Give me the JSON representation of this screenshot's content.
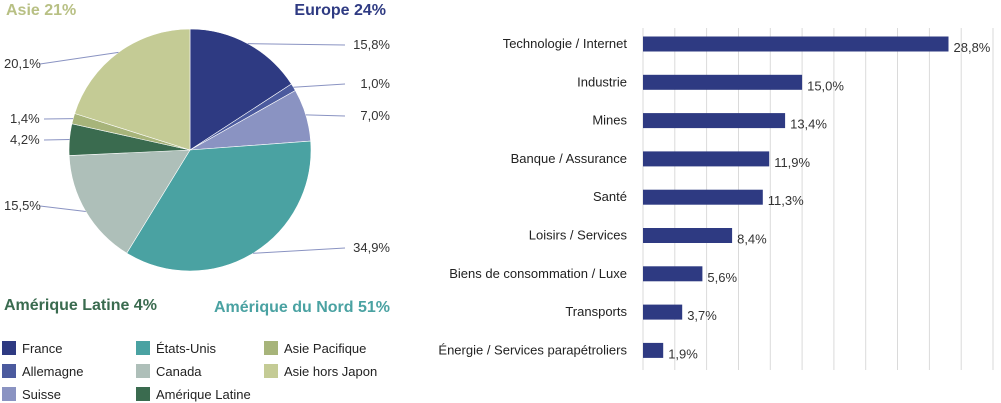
{
  "chart_data": [
    {
      "type": "pie",
      "slices": [
        {
          "name": "France",
          "value": 15.8,
          "label": "15,8%",
          "color": "#2e3a82"
        },
        {
          "name": "Allemagne",
          "value": 1.0,
          "label": "1,0%",
          "color": "#4b5a9e"
        },
        {
          "name": "Suisse",
          "value": 7.0,
          "label": "7,0%",
          "color": "#8a93c2"
        },
        {
          "name": "États-Unis",
          "value": 34.9,
          "label": "34,9%",
          "color": "#4aa2a2"
        },
        {
          "name": "Canada",
          "value": 15.5,
          "label": "15,5%",
          "color": "#aebfb9"
        },
        {
          "name": "Amérique Latine",
          "value": 4.2,
          "label": "4,2%",
          "color": "#3a6b4f"
        },
        {
          "name": "Asie Pacifique",
          "value": 1.4,
          "label": "1,4%",
          "color": "#a7b47a"
        },
        {
          "name": "Asie hors Japon",
          "value": 20.1,
          "label": "20,1%",
          "color": "#c4cb95"
        }
      ],
      "group_labels": [
        {
          "text": "Asie 21%",
          "color": "#b8c084"
        },
        {
          "text": "Europe 24%",
          "color": "#2e3a82"
        },
        {
          "text": "Amérique Latine 4%",
          "color": "#3a6b4f"
        },
        {
          "text": "Amérique du Nord 51%",
          "color": "#4aa2a2"
        }
      ],
      "legend": [
        {
          "label": "France",
          "color": "#2e3a82"
        },
        {
          "label": "Allemagne",
          "color": "#4b5a9e"
        },
        {
          "label": "Suisse",
          "color": "#8a93c2"
        },
        {
          "label": "États-Unis",
          "color": "#4aa2a2"
        },
        {
          "label": "Canada",
          "color": "#aebfb9"
        },
        {
          "label": "Amérique Latine",
          "color": "#3a6b4f"
        },
        {
          "label": "Asie Pacifique",
          "color": "#a7b47a"
        },
        {
          "label": "Asie hors Japon",
          "color": "#c4cb95"
        }
      ],
      "legend_placement": "bottom"
    },
    {
      "type": "bar",
      "orientation": "horizontal",
      "categories": [
        "Technologie / Internet",
        "Industrie",
        "Mines",
        "Banque / Assurance",
        "Santé",
        "Loisirs / Services",
        "Biens de consommation / Luxe",
        "Transports",
        "Énergie / Services parapétroliers"
      ],
      "values": [
        28.8,
        15.0,
        13.4,
        11.9,
        11.3,
        8.4,
        5.6,
        3.7,
        1.9
      ],
      "value_labels": [
        "28,8%",
        "15,0%",
        "13,4%",
        "11,9%",
        "11,3%",
        "8,4%",
        "5,6%",
        "3,7%",
        "1,9%"
      ],
      "xlim": [
        0,
        33
      ],
      "grid_step": 3,
      "grid": true,
      "bar_color": "#2e3a82"
    }
  ]
}
